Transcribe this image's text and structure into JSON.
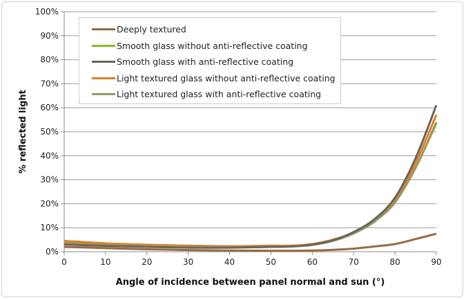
{
  "chart_data": {
    "type": "line",
    "title": "",
    "xlabel": "Angle of incidence between panel normal and sun (°)",
    "ylabel": "% reflected light",
    "xlim": [
      0,
      90
    ],
    "ylim": [
      0,
      100
    ],
    "x_ticks": [
      "0",
      "10",
      "20",
      "30",
      "40",
      "50",
      "60",
      "70",
      "80",
      "90"
    ],
    "y_ticks": [
      "0%",
      "10%",
      "20%",
      "30%",
      "40%",
      "50%",
      "60%",
      "70%",
      "80%",
      "90%",
      "100%"
    ],
    "grid": "horizontal",
    "legend_position": "top-left",
    "x": [
      0,
      10,
      20,
      30,
      40,
      50,
      55,
      60,
      65,
      70,
      75,
      80,
      85,
      90
    ],
    "series": [
      {
        "name": "Deeply textured",
        "color": "#9a6a3e",
        "values": [
          2,
          1.5,
          1,
          0.7,
          0.5,
          0.4,
          0.4,
          0.5,
          0.8,
          1.3,
          2.2,
          3.2,
          5.3,
          7.5
        ]
      },
      {
        "name": "Smooth glass without anti-reflective coating",
        "color": "#86c21f",
        "values": [
          4,
          3.2,
          2.7,
          2.3,
          2.2,
          2.3,
          2.3,
          3,
          4.8,
          8,
          12.5,
          21,
          35,
          54
        ]
      },
      {
        "name": "Smooth glass with anti-reflective coating",
        "color": "#6b6555",
        "values": [
          3,
          2.4,
          2,
          1.7,
          1.7,
          2,
          2.2,
          3,
          4.8,
          8.2,
          13.5,
          22.5,
          39,
          61
        ]
      },
      {
        "name": "Light textured glass without anti-reflective coating",
        "color": "#f07a1a",
        "values": [
          4.5,
          3.5,
          2.9,
          2.5,
          2.3,
          2.5,
          2.5,
          3.2,
          5,
          8,
          13,
          21.5,
          37,
          57
        ]
      },
      {
        "name": "Light textured glass with anti-reflective coating",
        "color": "#8f9a6a",
        "values": [
          3.5,
          2.8,
          2.3,
          2,
          1.9,
          2.1,
          2.2,
          2.8,
          4.5,
          7.6,
          12.5,
          20.5,
          35,
          53.5
        ]
      }
    ]
  }
}
